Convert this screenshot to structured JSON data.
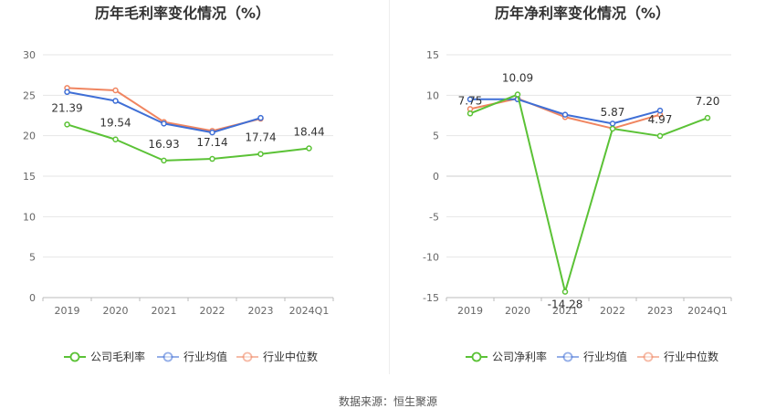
{
  "source_text": "数据来源：恒生聚源",
  "chart_data": [
    {
      "type": "line",
      "title": "历年毛利率变化情况（%）",
      "categories": [
        "2019",
        "2020",
        "2021",
        "2022",
        "2023",
        "2024Q1"
      ],
      "y_ticks": [
        0,
        5,
        10,
        15,
        20,
        25,
        30
      ],
      "ylim": [
        0,
        30
      ],
      "grid": true,
      "legend_position": "bottom",
      "series": [
        {
          "name": "公司毛利率",
          "color": "#5bc236",
          "values": [
            21.39,
            19.54,
            16.93,
            17.14,
            17.74,
            18.44
          ],
          "labels": [
            "21.39",
            "19.54",
            "16.93",
            "17.14",
            "17.74",
            "18.44"
          ]
        },
        {
          "name": "行业均值",
          "color": "#3f6fd6",
          "values": [
            25.4,
            24.3,
            21.5,
            20.4,
            22.2,
            null
          ]
        },
        {
          "name": "行业中位数",
          "color": "#f08560",
          "values": [
            25.9,
            25.6,
            21.7,
            20.6,
            22.1,
            null
          ]
        }
      ]
    },
    {
      "type": "line",
      "title": "历年净利率变化情况（%）",
      "categories": [
        "2019",
        "2020",
        "2021",
        "2022",
        "2023",
        "2024Q1"
      ],
      "y_ticks": [
        -15,
        -10,
        -5,
        0,
        5,
        10,
        15
      ],
      "ylim": [
        -15,
        15
      ],
      "grid": true,
      "legend_position": "bottom",
      "series": [
        {
          "name": "公司净利率",
          "color": "#5bc236",
          "values": [
            7.75,
            10.09,
            -14.28,
            5.87,
            4.97,
            7.2
          ],
          "labels": [
            "7.75",
            "10.09",
            "-14.28",
            "5.87",
            "4.97",
            "7.20"
          ]
        },
        {
          "name": "行业均值",
          "color": "#3f6fd6",
          "values": [
            9.5,
            9.5,
            7.6,
            6.5,
            8.1,
            null
          ]
        },
        {
          "name": "行业中位数",
          "color": "#f08560",
          "values": [
            8.3,
            9.6,
            7.3,
            5.9,
            7.6,
            null
          ]
        }
      ]
    }
  ]
}
